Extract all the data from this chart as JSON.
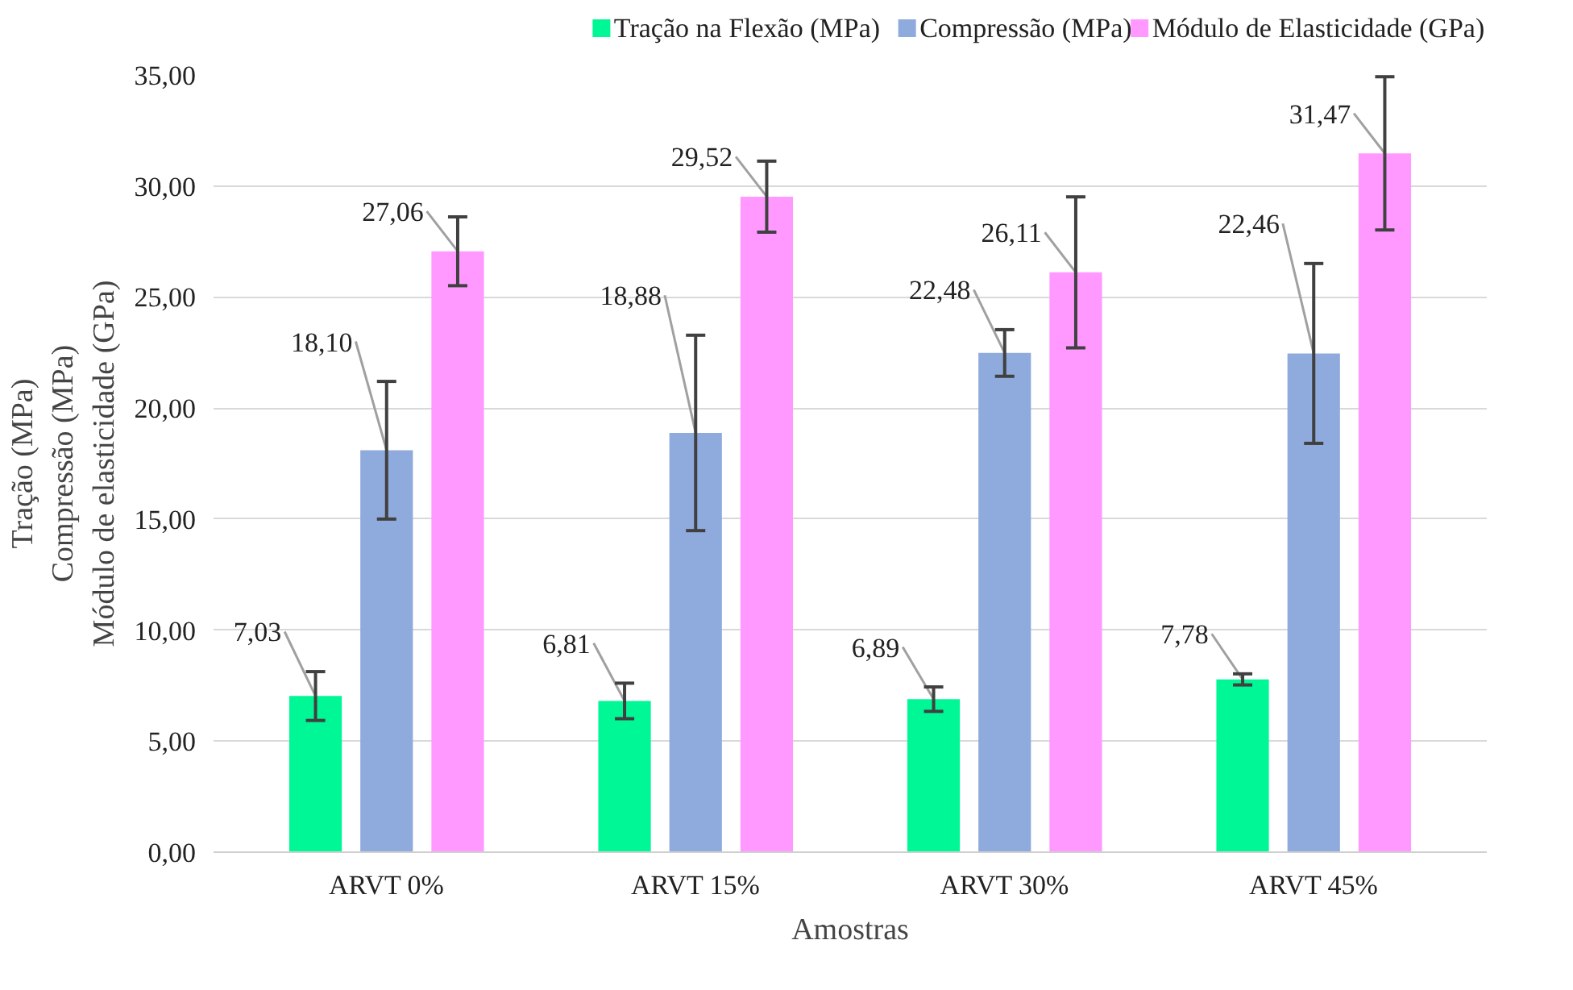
{
  "chart_data": {
    "type": "bar",
    "xlabel": "Amostras",
    "ylabel": "Tração (MPa)\nCompressão (MPa)\nMódulo de elasticidade (GPa)",
    "categories": [
      "ARVT 0%",
      "ARVT 15%",
      "ARVT 30%",
      "ARVT 45%"
    ],
    "series": [
      {
        "name": "Tração na Flexão (MPa)",
        "color": "#00f795",
        "values": [
          7.03,
          6.81,
          6.89,
          7.78
        ],
        "errors": [
          1.1,
          0.8,
          0.55,
          0.25
        ]
      },
      {
        "name": "Compressão (MPa)",
        "color": "#8faadc",
        "values": [
          18.1,
          18.88,
          22.48,
          22.46
        ],
        "errors": [
          3.1,
          4.4,
          1.05,
          4.05
        ]
      },
      {
        "name": "Módulo de Elasticidade (GPa)",
        "color": "#ff99ff",
        "values": [
          27.06,
          29.52,
          26.11,
          31.47
        ],
        "errors": [
          1.55,
          1.6,
          3.4,
          3.45
        ]
      }
    ],
    "value_labels": [
      [
        "7,03",
        "6,81",
        "6,89",
        "7,78"
      ],
      [
        "18,10",
        "18,88",
        "22,48",
        "22,46"
      ],
      [
        "27,06",
        "29,52",
        "26,11",
        "31,47"
      ]
    ],
    "ylim": [
      0,
      35
    ],
    "yticks": [
      {
        "value": 0,
        "label": "0,00"
      },
      {
        "value": 5,
        "label": "5,00"
      },
      {
        "value": 10,
        "label": "10,00"
      },
      {
        "value": 15,
        "label": "15,00"
      },
      {
        "value": 20,
        "label": "20,00"
      },
      {
        "value": 25,
        "label": "25,00"
      },
      {
        "value": 30,
        "label": "30,00"
      },
      {
        "value": 35,
        "label": "35,00"
      }
    ],
    "grid": "y",
    "legend": "top"
  }
}
